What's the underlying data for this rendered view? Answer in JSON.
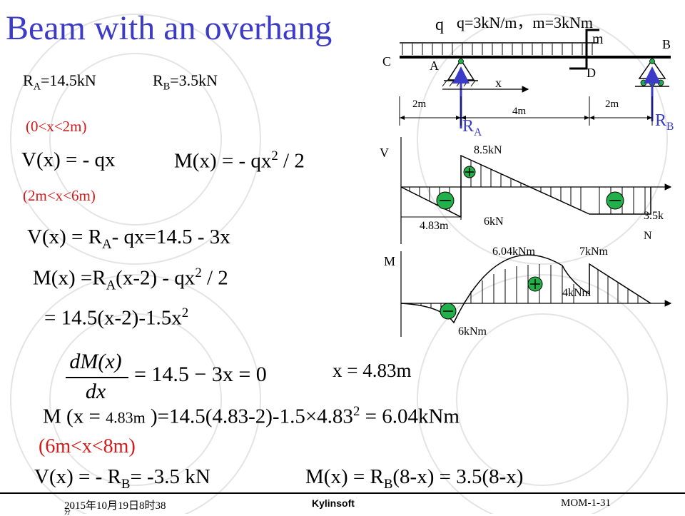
{
  "title": "Beam with an overhang",
  "reactions": {
    "ra": "R",
    "ra_sub": "A",
    "ra_val": "=14.5kN",
    "rb": "R",
    "rb_sub": "B",
    "rb_val": "=3.5kN"
  },
  "region1": {
    "range": "(0<x<2m)",
    "v_eq": "V(x) = - qx",
    "m_eq_a": "M(x) = - qx",
    "m_eq_sup": "2",
    "m_eq_b": " / 2"
  },
  "region2": {
    "range": "(2m<x<6m)",
    "v_eq_a": "V(x) = R",
    "v_eq_sub": "A",
    "v_eq_b": "- qx=14.5 - 3x",
    "m_eq_a": "M(x) =R",
    "m_eq_sub": "A",
    "m_eq_b": "(x-2) - qx",
    "m_eq_sup": "2",
    "m_eq_c": " / 2",
    "m_eq2_a": "= 14.5(x-2)-1.5x",
    "m_eq2_sup": "2",
    "derivative_left": "dM(x)",
    "derivative_den": "dx",
    "derivative_right": "= 14.5 − 3x = 0",
    "x_result": "x = 4.83m",
    "m_max_a": "M (x = ",
    "m_max_small": "4.83m",
    "m_max_b": " )=14.5(4.83-2)-1.5×4.83",
    "m_max_sup": "2",
    "m_max_c": " = 6.04kNm"
  },
  "region3": {
    "range": "(6m<x<8m)",
    "v_eq_a": "V(x) = - R",
    "v_eq_sub": "B",
    "v_eq_b": "= -3.5 kN",
    "m_eq_a": "M(x) = R",
    "m_eq_sub": "B",
    "m_eq_b": "(8-x) = 3.5(8-x)"
  },
  "beam": {
    "loads_label": "q=3kN/m，m=3kNm",
    "q": "q",
    "m": "m",
    "C": "C",
    "A": "A",
    "D": "D",
    "B": "B",
    "x": "x",
    "dim1": "2m",
    "dim2": "4m",
    "dim3": "2m",
    "ra": "R",
    "ra_sub": "A",
    "rb": "R",
    "rb_sub": "B"
  },
  "shear_diagram": {
    "axis": "V",
    "max": "8.5kN",
    "zero_pos": "4.83m",
    "min_left": "6kN",
    "end_a": "3.5k",
    "end_b": "N"
  },
  "moment_diagram": {
    "axis": "M",
    "max": "6.04kNm",
    "right_top": "7kNm",
    "right_mid": "4kNm",
    "min": "6kNm"
  },
  "footer": {
    "date": "2015年10月19日8时38",
    "date_line2": "分",
    "brand": "Kylinsoft",
    "page": "MOM-1-31"
  },
  "colors": {
    "title": "#3b3bc8",
    "accent": "#d41a1a",
    "reaction": "#3b3bc8",
    "green": "#22b04a"
  }
}
